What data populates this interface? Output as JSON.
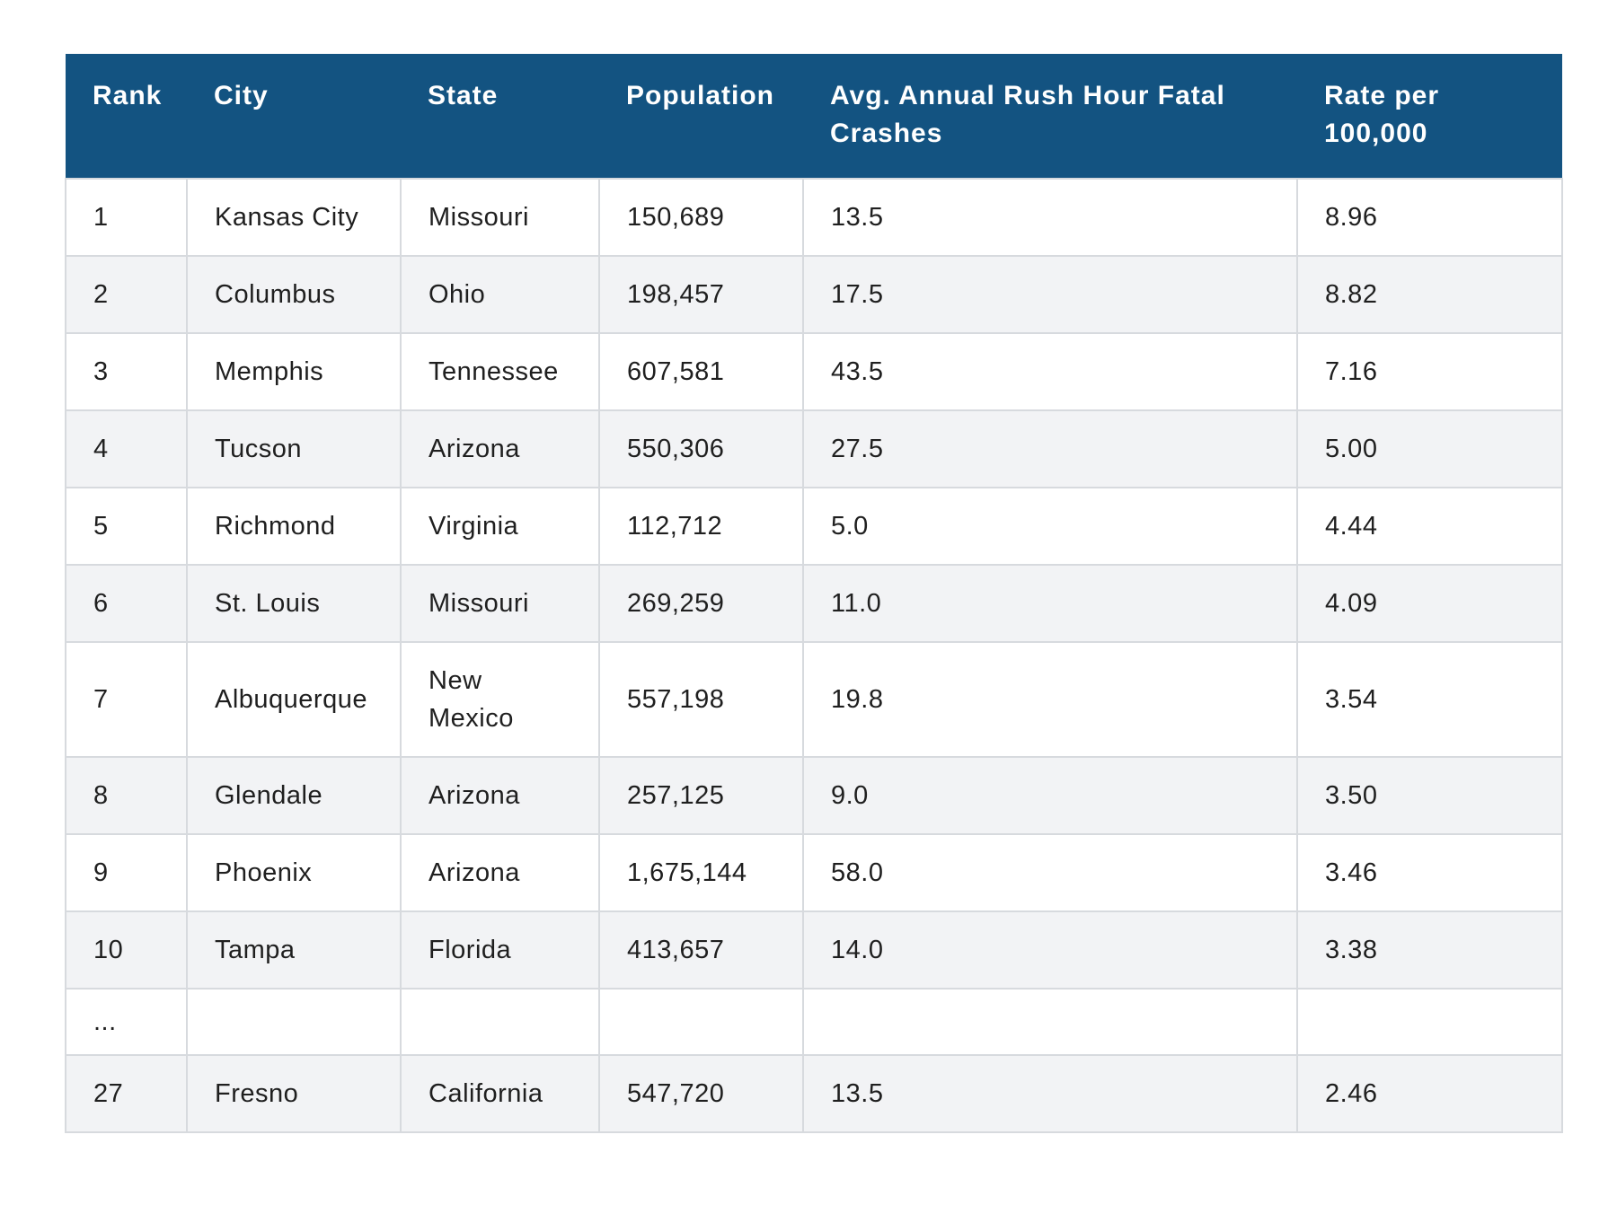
{
  "table": {
    "headers": [
      "Rank",
      "City",
      "State",
      "Population",
      "Avg. Annual Rush Hour Fatal Crashes",
      "Rate per 100,000"
    ],
    "rows": [
      [
        "1",
        "Kansas City",
        "Missouri",
        "150,689",
        "13.5",
        "8.96"
      ],
      [
        "2",
        "Columbus",
        "Ohio",
        "198,457",
        "17.5",
        "8.82"
      ],
      [
        "3",
        "Memphis",
        "Tennessee",
        "607,581",
        "43.5",
        "7.16"
      ],
      [
        "4",
        "Tucson",
        "Arizona",
        "550,306",
        "27.5",
        "5.00"
      ],
      [
        "5",
        "Richmond",
        "Virginia",
        "112,712",
        "5.0",
        "4.44"
      ],
      [
        "6",
        "St. Louis",
        "Missouri",
        "269,259",
        "11.0",
        "4.09"
      ],
      [
        "7",
        "Albuquerque",
        "New Mexico",
        "557,198",
        "19.8",
        "3.54"
      ],
      [
        "8",
        "Glendale",
        "Arizona",
        "257,125",
        "9.0",
        "3.50"
      ],
      [
        "9",
        "Phoenix",
        "Arizona",
        "1,675,144",
        "58.0",
        "3.46"
      ],
      [
        "10",
        "Tampa",
        "Florida",
        "413,657",
        "14.0",
        "3.38"
      ],
      [
        "...",
        "",
        "",
        "",
        "",
        ""
      ],
      [
        "27",
        "Fresno",
        "California",
        "547,720",
        "13.5",
        "2.46"
      ]
    ]
  },
  "colors": {
    "header_bg": "#135381",
    "header_text": "#ffffff",
    "row_alt_bg": "#f2f3f5",
    "border": "#d7dade"
  }
}
